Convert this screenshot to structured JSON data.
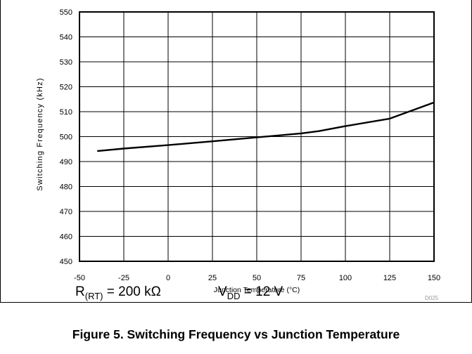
{
  "chart_data": {
    "type": "line",
    "title": "",
    "xlabel": "Junction Temperature (°C)",
    "ylabel": "Switching Frequency (kHz)",
    "xlim": [
      -50,
      150
    ],
    "ylim": [
      450,
      550
    ],
    "x_ticks": [
      "-50",
      "-25",
      "0",
      "25",
      "50",
      "75",
      "100",
      "125",
      "150"
    ],
    "y_ticks": [
      "450",
      "460",
      "470",
      "480",
      "490",
      "500",
      "510",
      "520",
      "530",
      "540",
      "550"
    ],
    "grid": true,
    "legend": "none",
    "series": [
      {
        "x": [
          -40,
          -25,
          0,
          25,
          50,
          75,
          85,
          100,
          125,
          150
        ],
        "y": [
          494.2,
          495.2,
          496.6,
          498.1,
          499.7,
          501.3,
          502.2,
          504.2,
          507.2,
          513.7
        ]
      }
    ],
    "code_label": "D025"
  },
  "conditions": {
    "rt_main": "R",
    "rt_sub": "(RT)",
    "rt_value": " = 200 kΩ",
    "vdd_main": "V",
    "vdd_sub": "DD",
    "vdd_value": " = 12 V"
  },
  "caption": "Figure 5. Switching Frequency vs Junction Temperature"
}
